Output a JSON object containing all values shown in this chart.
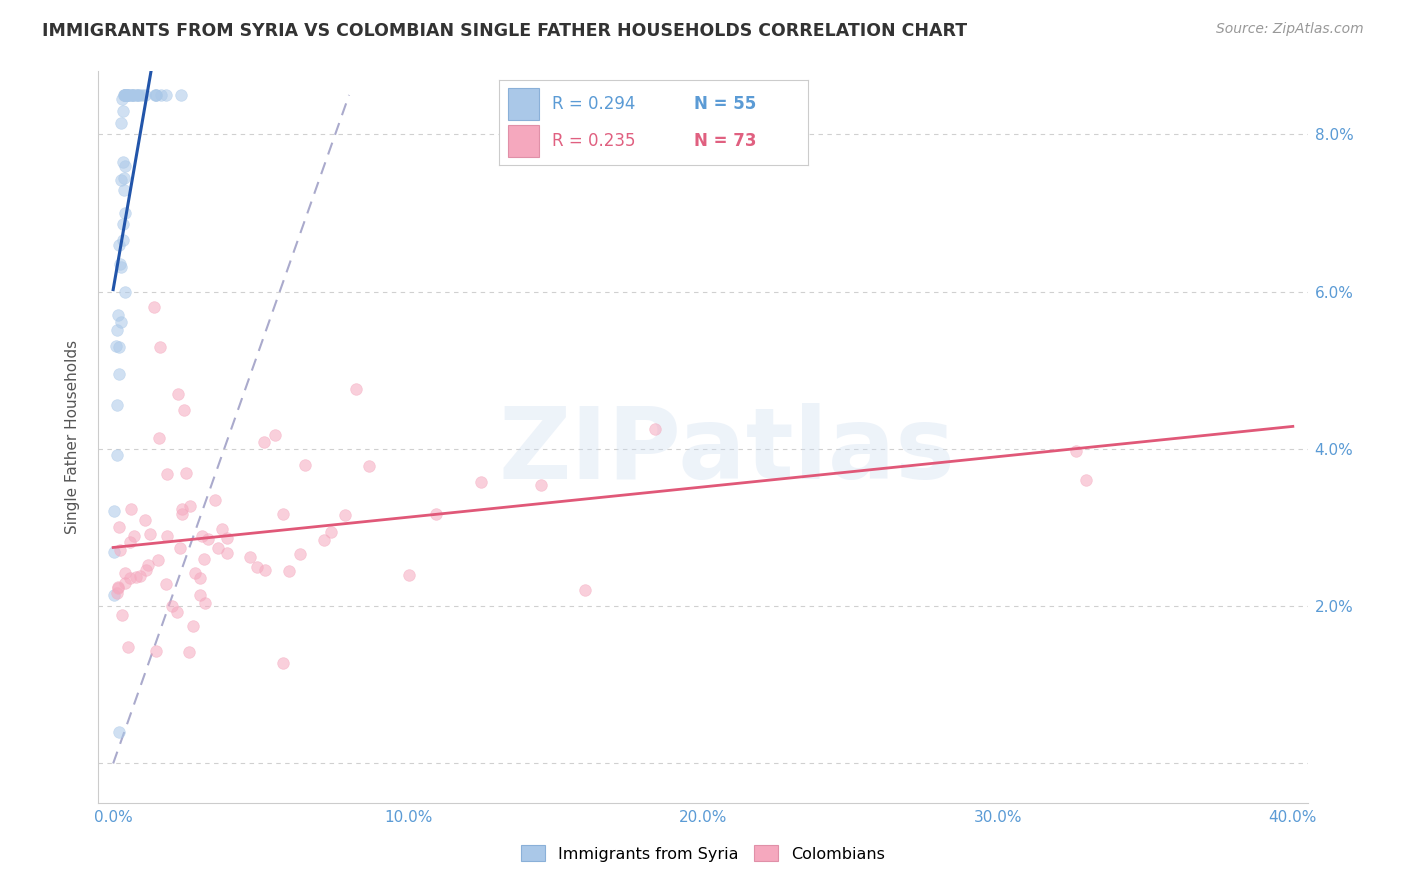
{
  "title": "IMMIGRANTS FROM SYRIA VS COLOMBIAN SINGLE FATHER HOUSEHOLDS CORRELATION CHART",
  "source": "Source: ZipAtlas.com",
  "ylabel": "Single Father Households",
  "xlim": [
    -0.005,
    0.405
  ],
  "ylim": [
    -0.005,
    0.088
  ],
  "xticks": [
    0.0,
    0.1,
    0.2,
    0.3,
    0.4
  ],
  "yticks": [
    0.0,
    0.02,
    0.04,
    0.06,
    0.08
  ],
  "xtick_labels": [
    "0.0%",
    "10.0%",
    "20.0%",
    "30.0%",
    "40.0%"
  ],
  "ytick_labels_right": [
    "",
    "2.0%",
    "4.0%",
    "6.0%",
    "8.0%"
  ],
  "legend_entries": [
    {
      "label": "Immigrants from Syria",
      "R": "0.294",
      "N": "55",
      "color": "#b8d4ed"
    },
    {
      "label": "Colombians",
      "R": "0.235",
      "N": "73",
      "color": "#f5b8c8"
    }
  ],
  "watermark": "ZIPatlas",
  "title_color": "#333333",
  "axis_label_color": "#5b9bd5",
  "grid_color": "#d0d0d0",
  "blue_scatter_color": "#aac8e8",
  "pink_scatter_color": "#f5a8be",
  "blue_line_color": "#2255aa",
  "pink_line_color": "#e05878",
  "diag_line_color": "#aaaacc",
  "scatter_size": 70,
  "scatter_alpha": 0.55,
  "blue_R": 0.294,
  "blue_N": 55,
  "pink_R": 0.235,
  "pink_N": 73
}
